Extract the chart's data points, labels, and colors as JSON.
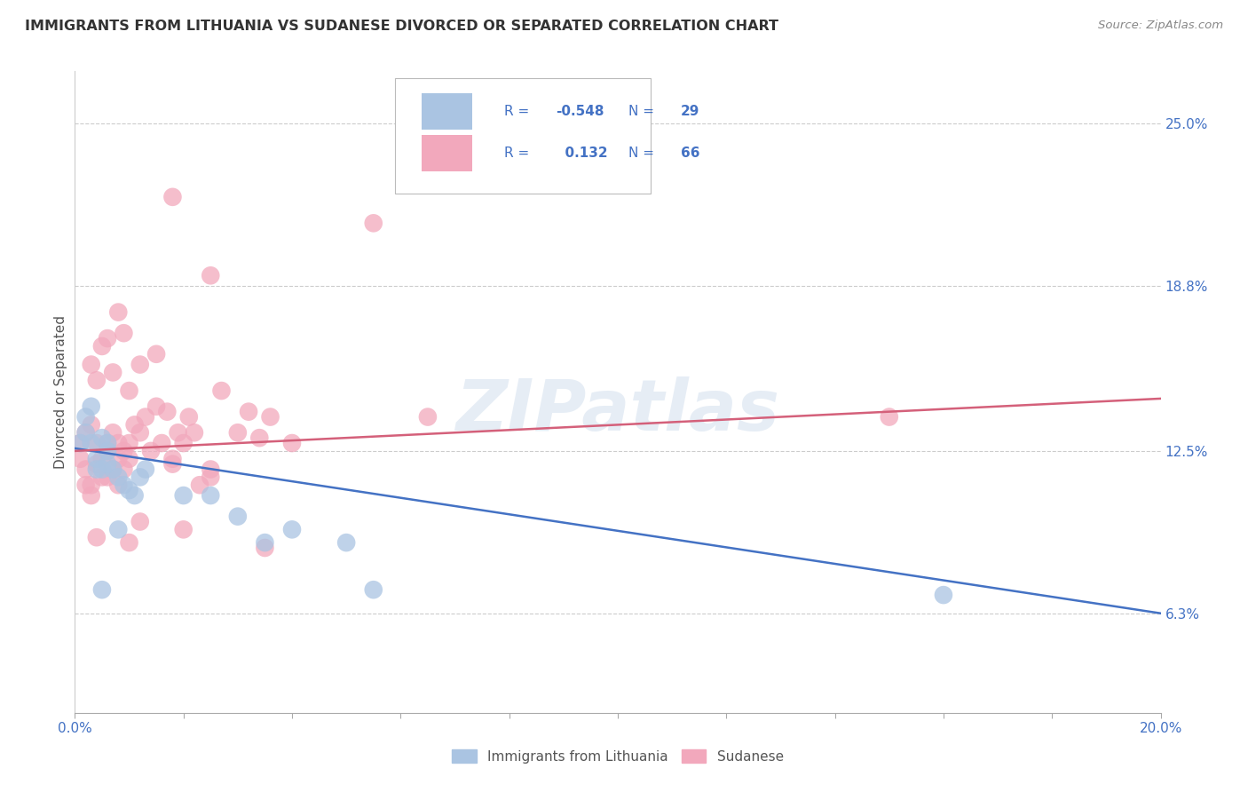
{
  "title": "IMMIGRANTS FROM LITHUANIA VS SUDANESE DIVORCED OR SEPARATED CORRELATION CHART",
  "source": "Source: ZipAtlas.com",
  "ylabel_label": "Divorced or Separated",
  "xlim": [
    0.0,
    0.2
  ],
  "ylim": [
    0.025,
    0.27
  ],
  "y_ticks_right": [
    0.063,
    0.125,
    0.188,
    0.25
  ],
  "y_tick_labels_right": [
    "6.3%",
    "12.5%",
    "18.8%",
    "25.0%"
  ],
  "color_blue": "#aac4e2",
  "color_pink": "#f2a8bc",
  "line_blue": "#4472c4",
  "line_pink": "#d4607a",
  "legend_R_blue": "-0.548",
  "legend_N_blue": "29",
  "legend_R_pink": "0.132",
  "legend_N_pink": "66",
  "watermark": "ZIPatlas",
  "blue_x": [
    0.001,
    0.002,
    0.003,
    0.004,
    0.005,
    0.006,
    0.006,
    0.007,
    0.008,
    0.009,
    0.01,
    0.011,
    0.012,
    0.013,
    0.002,
    0.003,
    0.004,
    0.005,
    0.006,
    0.02,
    0.025,
    0.03,
    0.035,
    0.04,
    0.05,
    0.055,
    0.16,
    0.005,
    0.008
  ],
  "blue_y": [
    0.128,
    0.132,
    0.128,
    0.122,
    0.118,
    0.125,
    0.12,
    0.118,
    0.115,
    0.112,
    0.11,
    0.108,
    0.115,
    0.118,
    0.138,
    0.142,
    0.118,
    0.13,
    0.128,
    0.108,
    0.108,
    0.1,
    0.09,
    0.095,
    0.09,
    0.072,
    0.07,
    0.072,
    0.095
  ],
  "pink_x": [
    0.001,
    0.001,
    0.002,
    0.002,
    0.003,
    0.003,
    0.004,
    0.004,
    0.005,
    0.005,
    0.006,
    0.006,
    0.007,
    0.007,
    0.008,
    0.008,
    0.009,
    0.009,
    0.01,
    0.01,
    0.011,
    0.012,
    0.013,
    0.014,
    0.015,
    0.016,
    0.017,
    0.018,
    0.019,
    0.02,
    0.021,
    0.022,
    0.023,
    0.025,
    0.027,
    0.03,
    0.032,
    0.034,
    0.036,
    0.04,
    0.003,
    0.004,
    0.005,
    0.006,
    0.007,
    0.008,
    0.009,
    0.01,
    0.012,
    0.015,
    0.002,
    0.003,
    0.006,
    0.008,
    0.018,
    0.025,
    0.035,
    0.15,
    0.018,
    0.055,
    0.004,
    0.01,
    0.012,
    0.02,
    0.025,
    0.065
  ],
  "pink_y": [
    0.128,
    0.122,
    0.132,
    0.118,
    0.135,
    0.112,
    0.128,
    0.12,
    0.122,
    0.115,
    0.128,
    0.125,
    0.132,
    0.118,
    0.128,
    0.122,
    0.125,
    0.118,
    0.128,
    0.122,
    0.135,
    0.132,
    0.138,
    0.125,
    0.142,
    0.128,
    0.14,
    0.12,
    0.132,
    0.128,
    0.138,
    0.132,
    0.112,
    0.115,
    0.148,
    0.132,
    0.14,
    0.13,
    0.138,
    0.128,
    0.158,
    0.152,
    0.165,
    0.168,
    0.155,
    0.178,
    0.17,
    0.148,
    0.158,
    0.162,
    0.112,
    0.108,
    0.115,
    0.112,
    0.122,
    0.118,
    0.088,
    0.138,
    0.222,
    0.212,
    0.092,
    0.09,
    0.098,
    0.095,
    0.192,
    0.138
  ]
}
